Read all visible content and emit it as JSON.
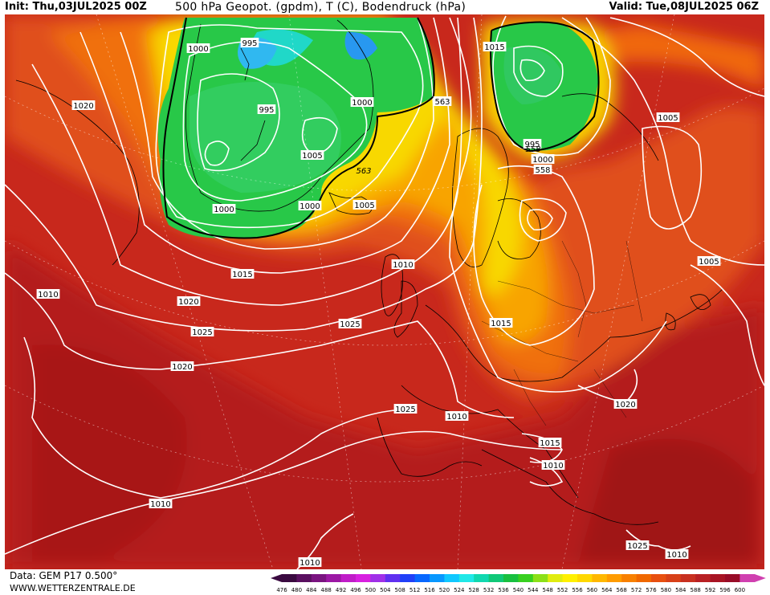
{
  "header": {
    "init": "Init: Thu,03JUL2025 00Z",
    "title": "500 hPa Geopot. (gpdm), T (C), Bodendruck (hPa)",
    "valid": "Valid: Tue,08JUL2025 06Z"
  },
  "footer": {
    "data_source": "Data: GEM P17 0.500°",
    "website": "WWW.WETTERZENTRALE.DE"
  },
  "legend": {
    "ticks": [
      "476",
      "480",
      "484",
      "488",
      "492",
      "496",
      "500",
      "504",
      "508",
      "512",
      "516",
      "520",
      "524",
      "528",
      "532",
      "536",
      "540",
      "544",
      "548",
      "552",
      "556",
      "560",
      "564",
      "568",
      "572",
      "576",
      "580",
      "584",
      "588",
      "592",
      "596",
      "600"
    ],
    "colors": [
      "#3a0a40",
      "#5a1060",
      "#7a1480",
      "#9c18a4",
      "#c01cc8",
      "#d820e0",
      "#a030e8",
      "#6030f0",
      "#2040f8",
      "#0868ff",
      "#0898ff",
      "#10c8ff",
      "#20e8e8",
      "#10d8b0",
      "#10c878",
      "#18c040",
      "#38d020",
      "#8ce018",
      "#e0ec10",
      "#fff000",
      "#ffd800",
      "#ffb800",
      "#ff9c00",
      "#f88000",
      "#f06800",
      "#e85010",
      "#d84018",
      "#c83020",
      "#b82024",
      "#a81424",
      "#980c28",
      "#d040b0"
    ],
    "arrow_left_color": "#3a0a40",
    "arrow_right_color": "#d040b0"
  },
  "map": {
    "isobar_labels": [
      "1000",
      "995",
      "1020",
      "995",
      "1000",
      "1005",
      "1000",
      "1000",
      "1005",
      "563",
      "1015",
      "995",
      "1000",
      "558",
      "1005",
      "1005",
      "1015",
      "1010",
      "1010",
      "1020",
      "1025",
      "1015",
      "1025",
      "1020",
      "1025",
      "1010",
      "1020",
      "1015",
      "1010",
      "1010",
      "1010",
      "1025",
      "1010",
      "1010",
      "1015",
      "1010"
    ],
    "height_labels": [
      "563",
      "558"
    ]
  }
}
